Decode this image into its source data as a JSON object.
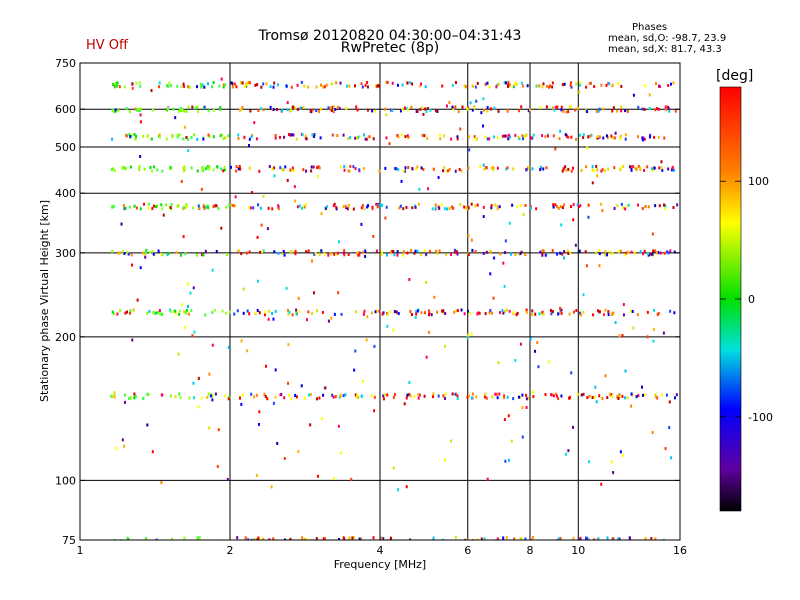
{
  "chart_data": {
    "type": "scatter",
    "title": "Tromsø 20120820 04:30:00–04:31:43",
    "subtitle": "RwPretec (8p)",
    "status": "HV Off",
    "xlabel": "Frequency [MHz]",
    "ylabel": "Stationary phase Virtual Height [km]",
    "xscale": "log",
    "yscale": "log",
    "xlim": [
      1,
      16
    ],
    "ylim": [
      75,
      750
    ],
    "x_ticks": [
      1,
      2,
      4,
      6,
      8,
      10,
      16
    ],
    "x_tick_labels": [
      "1",
      "2",
      "4",
      "6",
      "8",
      "10",
      "16"
    ],
    "y_ticks": [
      75,
      100,
      200,
      300,
      400,
      500,
      600,
      750
    ],
    "y_tick_labels": [
      "75",
      "100",
      "200",
      "300",
      "400",
      "500",
      "600",
      "750"
    ],
    "echo_height_bands_km": [
      75,
      150,
      225,
      300,
      375,
      450,
      525,
      600,
      675
    ],
    "legend": {
      "title": "Phases",
      "line1": "mean, sd,O: -98.7, 23.9",
      "line2": "mean, sd,X:  81.7, 43.3"
    },
    "colorbar": {
      "label": "[deg]",
      "range": [
        -180,
        180
      ],
      "ticks": [
        100,
        0,
        -100
      ],
      "tick_labels": [
        "100",
        "0",
        "-100"
      ]
    }
  }
}
